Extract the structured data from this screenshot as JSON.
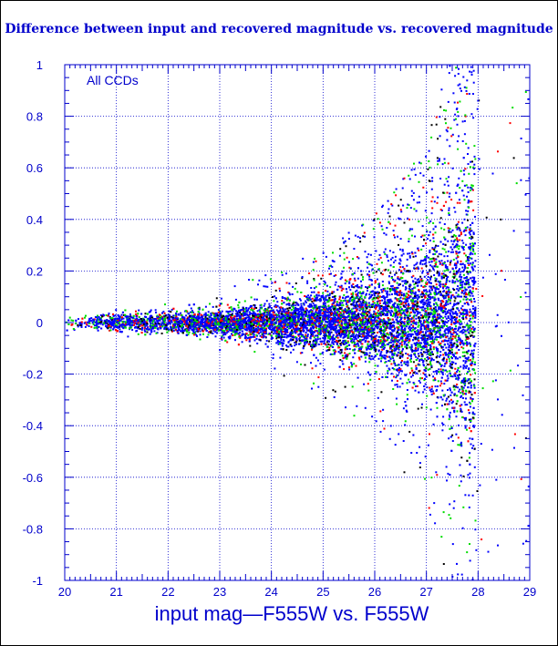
{
  "chart_data": {
    "type": "scatter",
    "title": "Difference between input and recovered magnitude vs. recovered magnitude",
    "xlabel": "input mag—F555W vs. F555W",
    "ylabel": "",
    "annotation": "All CCDs",
    "xlim": [
      20,
      29
    ],
    "ylim": [
      -1,
      1
    ],
    "x_ticks": [
      "20",
      "21",
      "22",
      "23",
      "24",
      "25",
      "26",
      "27",
      "28",
      "29"
    ],
    "y_ticks": [
      "-1",
      "-0.8",
      "-0.6",
      "-0.4",
      "-0.2",
      "0",
      "0.2",
      "0.4",
      "0.6",
      "0.8",
      "1"
    ],
    "grid": true,
    "colors": {
      "axis": "#0000cc",
      "grid": "#0000cc",
      "series_blue": "#0000ff",
      "series_green": "#00dd00",
      "series_red": "#ff0000",
      "series_black": "#000000"
    },
    "series_description": {
      "trend": "scatter centered at 0; spread grows with magnitude",
      "envelope": [
        {
          "x": 20.0,
          "half_width": 0.02
        },
        {
          "x": 21.0,
          "half_width": 0.025
        },
        {
          "x": 22.0,
          "half_width": 0.035
        },
        {
          "x": 23.0,
          "half_width": 0.045
        },
        {
          "x": 24.0,
          "half_width": 0.06
        },
        {
          "x": 25.0,
          "half_width": 0.09
        },
        {
          "x": 26.0,
          "half_width": 0.13
        },
        {
          "x": 27.0,
          "half_width": 0.22
        },
        {
          "x": 27.6,
          "half_width": 0.35
        },
        {
          "x": 27.9,
          "half_width": 0.45
        }
      ],
      "cutoff_x": 27.95
    }
  }
}
